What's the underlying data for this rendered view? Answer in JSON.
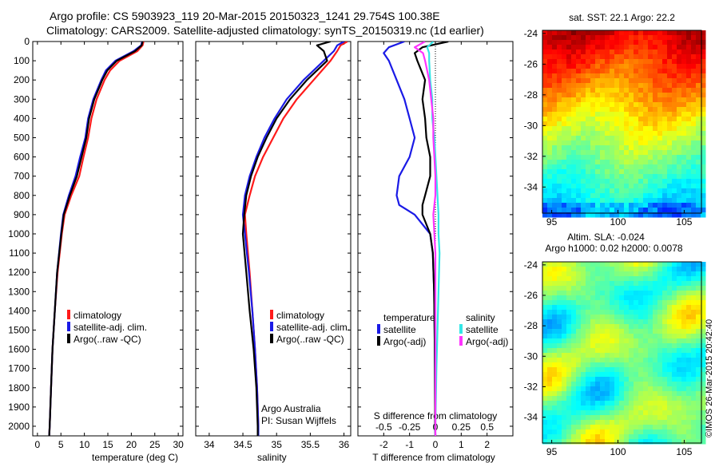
{
  "title": {
    "line1": "Argo profile: CS 5903923_119 20-Mar-2015 20150323_1241 29.754S 100.38E",
    "line2": "Climatology: CARS2009. Satellite-adjusted climatology: synTS_20150319.nc (1d earlier)"
  },
  "credit": "©IMOS 26-Mar-2015 20:42:40",
  "colors": {
    "climatology": "#ff1a1a",
    "satellite": "#1a1ae6",
    "argo": "#000000",
    "salinity_satellite": "#33e6e6",
    "salinity_argo": "#ff33ff"
  },
  "chart_data": [
    {
      "type": "line",
      "panel": "temperature",
      "xlabel": "temperature (deg C)",
      "ylabel": "",
      "xlim": [
        -1,
        31
      ],
      "ylim": [
        2050,
        0
      ],
      "xticks": [
        0,
        5,
        10,
        15,
        20,
        25,
        30
      ],
      "yticks": [
        0,
        100,
        200,
        300,
        400,
        500,
        600,
        700,
        800,
        900,
        1000,
        1100,
        1200,
        1300,
        1400,
        1500,
        1600,
        1700,
        1800,
        1900,
        2000
      ],
      "legend": [
        "climatology",
        "satellite-adj. clim.",
        "Argo(..raw -QC)"
      ],
      "legend_placement": "lower-center",
      "series": [
        {
          "name": "climatology",
          "color": "#ff1a1a",
          "depth": [
            0,
            20,
            50,
            100,
            150,
            200,
            300,
            400,
            500,
            600,
            700,
            800,
            900,
            1000,
            1200,
            1400,
            1600,
            1800,
            2000,
            2050
          ],
          "values": [
            22.6,
            22.4,
            21.3,
            17.5,
            15.5,
            14.3,
            12.6,
            11.5,
            10.8,
            9.8,
            8.9,
            7.2,
            5.8,
            5.2,
            4.3,
            3.7,
            3.2,
            2.9,
            2.6,
            2.5
          ]
        },
        {
          "name": "satellite-adj. clim.",
          "color": "#1a1ae6",
          "depth": [
            0,
            20,
            50,
            100,
            150,
            200,
            300,
            400,
            500,
            600,
            700,
            800,
            900,
            1000,
            1200,
            1400,
            1600,
            1800,
            2000,
            2050
          ],
          "values": [
            22.3,
            22.1,
            20.5,
            16.6,
            14.6,
            13.6,
            11.9,
            10.8,
            10.2,
            9.1,
            8.1,
            6.7,
            5.5,
            5.0,
            4.2,
            3.7,
            3.2,
            2.9,
            2.6,
            2.5
          ]
        },
        {
          "name": "Argo(..raw -QC)",
          "color": "#000000",
          "depth": [
            0,
            20,
            50,
            100,
            150,
            200,
            300,
            400,
            500,
            600,
            700,
            800,
            900,
            1000,
            1200,
            1400,
            1600,
            1800,
            2000,
            2050
          ],
          "values": [
            22.4,
            22.2,
            20.8,
            16.9,
            14.9,
            13.8,
            12.1,
            11.0,
            10.4,
            9.4,
            8.4,
            6.9,
            5.6,
            5.1,
            4.2,
            3.7,
            3.2,
            2.9,
            2.6,
            2.5
          ]
        }
      ]
    },
    {
      "type": "line",
      "panel": "salinity",
      "xlabel": "salinity",
      "xlim": [
        33.8,
        36.1
      ],
      "ylim": [
        2050,
        0
      ],
      "xticks": [
        34,
        34.5,
        35,
        35.5,
        36
      ],
      "legend": [
        "climatology",
        "satellite-adj. clim.",
        "Argo(..raw -QC)"
      ],
      "legend_placement": "lower-right",
      "annotations": [
        "Argo Australia",
        "PI: Susan Wijffels"
      ],
      "series": [
        {
          "name": "climatology",
          "color": "#ff1a1a",
          "depth": [
            0,
            20,
            50,
            100,
            200,
            300,
            400,
            500,
            600,
            700,
            800,
            900,
            1000,
            1200,
            1400,
            1600,
            1800,
            2000,
            2050
          ],
          "values": [
            36.05,
            35.95,
            35.9,
            35.8,
            35.55,
            35.3,
            35.1,
            34.95,
            34.8,
            34.68,
            34.6,
            34.53,
            34.55,
            34.6,
            34.64,
            34.68,
            34.71,
            34.73,
            34.73
          ]
        },
        {
          "name": "satellite-adj. clim.",
          "color": "#1a1ae6",
          "depth": [
            0,
            20,
            50,
            100,
            200,
            300,
            400,
            500,
            600,
            700,
            800,
            900,
            1000,
            1200,
            1400,
            1600,
            1800,
            2000,
            2050
          ],
          "values": [
            36.0,
            35.9,
            35.85,
            35.7,
            35.4,
            35.15,
            34.97,
            34.82,
            34.7,
            34.6,
            34.53,
            34.5,
            34.53,
            34.59,
            34.64,
            34.68,
            34.71,
            34.73,
            34.73
          ]
        },
        {
          "name": "Argo(..raw -QC)",
          "color": "#000000",
          "depth": [
            0,
            20,
            50,
            100,
            200,
            300,
            400,
            500,
            600,
            700,
            800,
            900,
            1000,
            1200,
            1400,
            1600,
            1800,
            2000,
            2050
          ],
          "values": [
            35.8,
            35.6,
            35.7,
            35.75,
            35.45,
            35.2,
            35.0,
            34.85,
            34.72,
            34.62,
            34.55,
            34.52,
            34.5,
            34.55,
            34.6,
            34.66,
            34.7,
            34.72,
            34.72
          ]
        }
      ]
    },
    {
      "type": "line",
      "panel": "difference",
      "xlabel": "T difference from climatology",
      "x2label": "S difference from climatology",
      "xlim": [
        -3.0,
        3.0
      ],
      "x2lim": [
        -0.75,
        0.75
      ],
      "ylim": [
        2050,
        0
      ],
      "xticks": [
        -2,
        -1,
        0,
        1,
        2
      ],
      "x2ticks": [
        -0.5,
        -0.25,
        0,
        0.25,
        0.5
      ],
      "x2ticklabels": [
        "-0.5",
        "-0.25",
        "0",
        "0.25",
        "0.5"
      ],
      "legend_groups": [
        {
          "heading": "temperature",
          "items": [
            "satellite",
            "Argo(-adj)"
          ]
        },
        {
          "heading": "salinity",
          "items": [
            "satellite",
            "Argo(-adj)"
          ]
        }
      ],
      "legend_placement": "lower-center",
      "series": [
        {
          "name": "temperature satellite",
          "axis": "T",
          "color": "#1a1ae6",
          "depth": [
            0,
            30,
            60,
            100,
            200,
            300,
            400,
            500,
            600,
            700,
            800,
            850,
            900,
            1000,
            1100,
            1300,
            1500,
            1700,
            2000,
            2050
          ],
          "values": [
            -1.2,
            -1.8,
            -2.0,
            -1.8,
            -1.5,
            -1.2,
            -1.0,
            -0.8,
            -1.0,
            -1.4,
            -1.5,
            -1.4,
            -0.8,
            -0.2,
            -0.1,
            -0.05,
            -0.03,
            -0.02,
            -0.01,
            0.0
          ]
        },
        {
          "name": "temperature Argo(-adj)",
          "axis": "T",
          "color": "#000000",
          "depth": [
            0,
            30,
            60,
            100,
            200,
            300,
            400,
            500,
            600,
            700,
            800,
            850,
            900,
            1000,
            1100,
            1300,
            1500,
            1700,
            2000,
            2050
          ],
          "values": [
            0.5,
            -0.5,
            -0.8,
            -0.7,
            -0.4,
            -0.5,
            -0.4,
            -0.35,
            -0.2,
            -0.2,
            -0.4,
            -0.5,
            -0.5,
            -0.2,
            -0.1,
            -0.05,
            -0.03,
            -0.02,
            -0.01,
            0.0
          ]
        },
        {
          "name": "salinity satellite",
          "axis": "S",
          "color": "#33e6e6",
          "depth": [
            0,
            30,
            60,
            100,
            200,
            300,
            400,
            500,
            600,
            700,
            800,
            900,
            1000,
            1100,
            1300,
            1500,
            1700,
            2000,
            2050
          ],
          "values": [
            -0.02,
            -0.08,
            -0.06,
            -0.06,
            -0.05,
            -0.03,
            -0.03,
            -0.01,
            0.0,
            0.01,
            0.02,
            0.03,
            0.03,
            0.04,
            0.03,
            0.02,
            0.01,
            0.0,
            0.0
          ]
        },
        {
          "name": "salinity Argo(-adj)",
          "axis": "S",
          "color": "#ff33ff",
          "depth": [
            0,
            30,
            60,
            100,
            200,
            300,
            400,
            500,
            600,
            700,
            800,
            900,
            1000,
            1100,
            1300,
            1500,
            1700,
            2000,
            2050
          ],
          "values": [
            -0.1,
            -0.2,
            -0.12,
            -0.1,
            -0.06,
            -0.04,
            -0.02,
            -0.02,
            -0.01,
            0.0,
            0.0,
            -0.02,
            -0.01,
            0.0,
            0.0,
            0.0,
            0.0,
            0.0,
            0.0
          ]
        }
      ]
    },
    {
      "type": "heatmap",
      "panel": "sst-map",
      "title": "sat. SST: 22.1  Argo: 22.2",
      "xlim": [
        94.3,
        106.3
      ],
      "ylim": [
        -35.7,
        -23.8
      ],
      "xticks": [
        95,
        100,
        105
      ],
      "yticks": [
        -24,
        -26,
        -28,
        -30,
        -32,
        -34
      ],
      "colormap": "jet (orange north, blue south)"
    },
    {
      "type": "heatmap",
      "panel": "sla-map",
      "title_line1": "Altim. SLA: -0.024",
      "title_line2": "Argo h1000: 0.02  h2000: 0.0078",
      "xlim": [
        94.3,
        106.3
      ],
      "ylim": [
        -35.7,
        -23.8
      ],
      "xticks": [
        95,
        100,
        105
      ],
      "yticks": [
        -24,
        -26,
        -28,
        -30,
        -32,
        -34
      ],
      "colormap": "jet (mostly green with yellow patches)"
    }
  ]
}
